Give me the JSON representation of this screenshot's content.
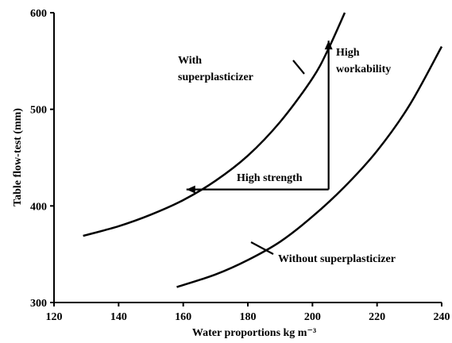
{
  "chart_data": {
    "type": "line",
    "xlabel": "Water proportions kg m⁻³",
    "ylabel": "Table flow-test (mm)",
    "xlim": [
      120,
      240
    ],
    "ylim": [
      300,
      600
    ],
    "xticks": [
      120,
      140,
      160,
      180,
      200,
      220,
      240
    ],
    "yticks": [
      300,
      400,
      500,
      600
    ],
    "grid": false,
    "series": [
      {
        "name": "With superplasticizer",
        "x": [
          129,
          140,
          150,
          160,
          170,
          180,
          190,
          200,
          205,
          210
        ],
        "y": [
          369,
          379,
          391,
          406,
          426,
          452,
          487,
          532,
          563,
          600
        ]
      },
      {
        "name": "Without superplasticizer",
        "x": [
          158,
          170,
          180,
          190,
          200,
          210,
          220,
          230,
          240
        ],
        "y": [
          316,
          329,
          344,
          363,
          389,
          420,
          457,
          504,
          565
        ]
      }
    ],
    "annotations": [
      {
        "id": "with",
        "text": [
          "With",
          "superplasticizer"
        ]
      },
      {
        "id": "without",
        "text": [
          "Without superplasticizer"
        ]
      },
      {
        "id": "workability",
        "text": [
          "High",
          "workability"
        ]
      },
      {
        "id": "strength",
        "text": [
          "High strength"
        ]
      }
    ],
    "arrows": [
      {
        "label": "High workability",
        "from": [
          205,
          417
        ],
        "to": [
          205,
          571
        ]
      },
      {
        "label": "High strength",
        "from": [
          205,
          417
        ],
        "to": [
          161,
          417
        ]
      }
    ]
  }
}
